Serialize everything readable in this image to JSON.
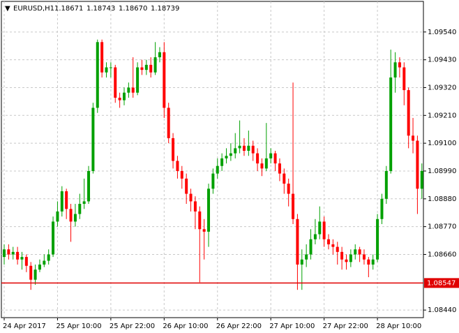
{
  "chart_data": {
    "type": "candlestick",
    "symbol": "EURUSD,H1",
    "header_values": [
      "1.18671",
      "1.18743",
      "1.18670",
      "1.18739"
    ],
    "categories": [
      "24 Apr 2017",
      null,
      null,
      null,
      null,
      null,
      null,
      null,
      null,
      null,
      null,
      null,
      "25 Apr 10:00",
      null,
      null,
      null,
      null,
      null,
      null,
      null,
      null,
      null,
      null,
      null,
      "25 Apr 22:00",
      null,
      null,
      null,
      null,
      null,
      null,
      null,
      null,
      null,
      null,
      null,
      "26 Apr 10:00",
      null,
      null,
      null,
      null,
      null,
      null,
      null,
      null,
      null,
      null,
      null,
      "26 Apr 22:00",
      null,
      null,
      null,
      null,
      null,
      null,
      null,
      null,
      null,
      null,
      null,
      "27 Apr 10:00",
      null,
      null,
      null,
      null,
      null,
      null,
      null,
      null,
      null,
      null,
      null,
      "27 Apr 22:00",
      null,
      null,
      null,
      null,
      null,
      null,
      null,
      null,
      null,
      null,
      null,
      "28 Apr 10:00",
      null,
      null,
      null,
      null,
      null,
      null,
      null,
      null,
      null,
      null
    ],
    "open": [
      1.0865,
      1.0868,
      1.0866,
      1.0867,
      1.0864,
      1.0865,
      1.08615,
      1.0856,
      1.086,
      1.0862,
      1.08635,
      1.0866,
      1.0879,
      1.0883,
      1.0891,
      1.0884,
      1.0879,
      1.0882,
      1.0886,
      1.0887,
      1.0899,
      1.0924,
      1.095,
      1.0938,
      1.094,
      1.094,
      1.0928,
      1.0927,
      1.093,
      1.0932,
      1.093,
      1.094,
      1.0939,
      1.0941,
      1.0938,
      1.0944,
      1.0946,
      1.0924,
      1.0912,
      1.0903,
      1.0899,
      1.0896,
      1.089,
      1.0887,
      1.0883,
      1.0876,
      1.0875,
      1.0892,
      1.0898,
      1.0901,
      1.0904,
      1.0905,
      1.0906,
      1.0908,
      1.0909,
      1.0907,
      1.0909,
      1.0906,
      1.0902,
      1.09,
      1.0904,
      1.0906,
      1.0902,
      1.0898,
      1.0894,
      1.089,
      1.088,
      1.0862,
      1.0864,
      1.0866,
      1.0872,
      1.0874,
      1.0879,
      1.0872,
      1.087,
      1.0869,
      1.0867,
      1.0864,
      1.0863,
      1.0866,
      1.0868,
      1.0866,
      1.0864,
      1.0862,
      1.0864,
      1.088,
      1.0888,
      1.0899,
      1.0936,
      1.0942,
      1.094,
      1.0931,
      1.0913,
      1.0911,
      1.0892
    ],
    "high": [
      1.087,
      1.087,
      1.0869,
      1.0869,
      1.0867,
      1.0866,
      1.0863,
      1.0862,
      1.0864,
      1.0866,
      1.0868,
      1.0881,
      1.0887,
      1.0893,
      1.0892,
      1.0886,
      1.0886,
      1.089,
      1.0896,
      1.0901,
      1.0926,
      1.0951,
      1.0951,
      1.0942,
      1.0942,
      1.0941,
      1.093,
      1.0932,
      1.0934,
      1.0944,
      1.0942,
      1.0943,
      1.0943,
      1.0944,
      1.095,
      1.0948,
      1.095,
      1.0926,
      1.0914,
      1.0905,
      1.0901,
      1.0898,
      1.0892,
      1.0889,
      1.0885,
      1.088,
      1.0894,
      1.09,
      1.0904,
      1.0906,
      1.0908,
      1.091,
      1.0914,
      1.0919,
      1.0912,
      1.0915,
      1.0911,
      1.0908,
      1.0904,
      1.0918,
      1.0908,
      1.0907,
      1.0904,
      1.09,
      1.0896,
      1.0934,
      1.0882,
      1.0868,
      1.087,
      1.0876,
      1.088,
      1.0885,
      1.0881,
      1.0874,
      1.0872,
      1.0871,
      1.0869,
      1.0866,
      1.0868,
      1.087,
      1.0869,
      1.0868,
      1.0865,
      1.0866,
      1.0882,
      1.089,
      1.0901,
      1.0947,
      1.0946,
      1.0944,
      1.0942,
      1.0932,
      1.092,
      1.0913,
      1.0902
    ],
    "low": [
      1.0862,
      1.0864,
      1.0864,
      1.0862,
      1.086,
      1.0859,
      1.0852,
      1.0854,
      1.0859,
      1.0861,
      1.0862,
      1.0865,
      1.0877,
      1.0881,
      1.088,
      1.0871,
      1.0877,
      1.088,
      1.0884,
      1.0886,
      1.0898,
      1.0922,
      1.0936,
      1.0936,
      1.0936,
      1.0926,
      1.0924,
      1.0925,
      1.0928,
      1.0928,
      1.0929,
      1.0937,
      1.0937,
      1.0936,
      1.0937,
      1.0942,
      1.092,
      1.091,
      1.09,
      1.0896,
      1.0892,
      1.0886,
      1.0883,
      1.0876,
      1.0855,
      1.0864,
      1.0869,
      1.089,
      1.0896,
      1.0899,
      1.0902,
      1.0903,
      1.0904,
      1.0906,
      1.0905,
      1.0905,
      1.0903,
      1.0899,
      1.0897,
      1.0899,
      1.0902,
      1.0899,
      1.0895,
      1.089,
      1.0885,
      1.0878,
      1.0852,
      1.0852,
      1.0861,
      1.0864,
      1.087,
      1.0872,
      1.0869,
      1.0868,
      1.0866,
      1.0862,
      1.086,
      1.086,
      1.0861,
      1.0864,
      1.0863,
      1.0862,
      1.0857,
      1.086,
      1.0863,
      1.0878,
      1.0886,
      1.0898,
      1.093,
      1.0936,
      1.0925,
      1.0908,
      1.0906,
      1.0882,
      1.0888
    ],
    "close": [
      1.0868,
      1.0866,
      1.0867,
      1.0864,
      1.0865,
      1.08615,
      1.0856,
      1.086,
      1.0862,
      1.08635,
      1.0866,
      1.0879,
      1.0883,
      1.0891,
      1.0884,
      1.0879,
      1.0882,
      1.0886,
      1.0887,
      1.0899,
      1.0924,
      1.095,
      1.0938,
      1.094,
      1.094,
      1.0928,
      1.0927,
      1.093,
      1.0932,
      1.093,
      1.094,
      1.0939,
      1.0941,
      1.0938,
      1.0944,
      1.0946,
      1.0924,
      1.0912,
      1.0903,
      1.0899,
      1.0896,
      1.089,
      1.0887,
      1.0883,
      1.0876,
      1.0875,
      1.0892,
      1.0898,
      1.0901,
      1.0904,
      1.0905,
      1.0906,
      1.0908,
      1.0909,
      1.0907,
      1.0909,
      1.0906,
      1.0902,
      1.09,
      1.0904,
      1.0906,
      1.0902,
      1.0898,
      1.0894,
      1.089,
      1.088,
      1.0862,
      1.0864,
      1.0866,
      1.0872,
      1.0874,
      1.0879,
      1.0872,
      1.087,
      1.0869,
      1.0867,
      1.0864,
      1.0863,
      1.0866,
      1.0868,
      1.0866,
      1.0864,
      1.0862,
      1.0864,
      1.088,
      1.0888,
      1.0899,
      1.0936,
      1.0942,
      1.094,
      1.0931,
      1.0913,
      1.0911,
      1.0892,
      1.0899
    ],
    "up_color": "#00a000",
    "down_color": "#ff0000",
    "price_line": 1.08547,
    "price_line_color": "#e00000",
    "ylim": [
      1.0841,
      1.09661
    ],
    "yticks": [
      {
        "value": 1.0844,
        "label": "1.08440"
      },
      {
        "value": 1.0866,
        "label": "1.08660"
      },
      {
        "value": 1.0877,
        "label": "1.08770"
      },
      {
        "value": 1.0888,
        "label": "1.08880"
      },
      {
        "value": 1.0899,
        "label": "1.08990"
      },
      {
        "value": 1.091,
        "label": "1.09100"
      },
      {
        "value": 1.0921,
        "label": "1.09210"
      },
      {
        "value": 1.0932,
        "label": "1.09320"
      },
      {
        "value": 1.0943,
        "label": "1.09430"
      },
      {
        "value": 1.0954,
        "label": "1.09540"
      }
    ],
    "grid": true
  }
}
